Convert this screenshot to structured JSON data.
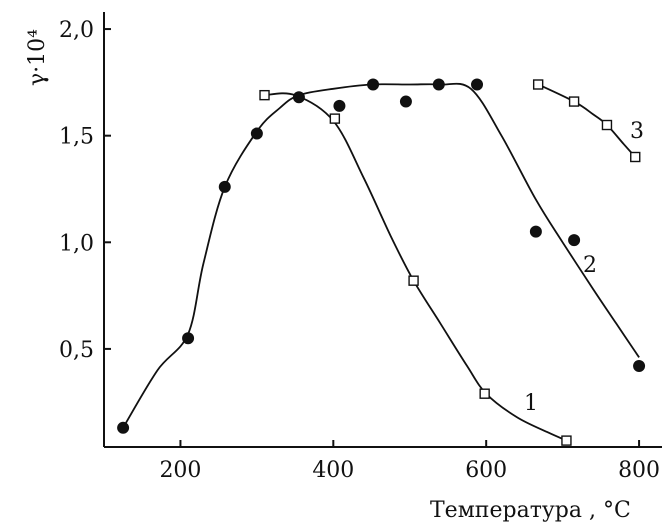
{
  "chart_data": {
    "type": "line",
    "xlabel": "Температура , °С",
    "ylabel": "γ·10⁴",
    "xlim": [
      100,
      830
    ],
    "ylim": [
      0.04,
      2.08
    ],
    "x_ticks": [
      {
        "value": 200,
        "label": "200"
      },
      {
        "value": 400,
        "label": "400"
      },
      {
        "value": 600,
        "label": "600"
      },
      {
        "value": 800,
        "label": "800"
      }
    ],
    "y_ticks": [
      {
        "value": 0.5,
        "label": "0,5"
      },
      {
        "value": 1.0,
        "label": "1,0"
      },
      {
        "value": 1.5,
        "label": "1,5"
      },
      {
        "value": 2.0,
        "label": "2,0"
      }
    ],
    "series": [
      {
        "name": "1",
        "marker": "open-square",
        "line": [
          [
            310,
            1.69
          ],
          [
            350,
            1.69
          ],
          [
            400,
            1.57
          ],
          [
            440,
            1.3
          ],
          [
            475,
            1.03
          ],
          [
            505,
            0.82
          ],
          [
            540,
            0.62
          ],
          [
            575,
            0.42
          ],
          [
            600,
            0.29
          ],
          [
            640,
            0.18
          ],
          [
            680,
            0.11
          ],
          [
            705,
            0.07
          ]
        ],
        "points": [
          [
            310,
            1.69
          ],
          [
            402,
            1.58
          ],
          [
            505,
            0.82
          ],
          [
            598,
            0.29
          ],
          [
            705,
            0.07
          ]
        ]
      },
      {
        "name": "2",
        "marker": "filled-circle",
        "line": [
          [
            125,
            0.13
          ],
          [
            170,
            0.4
          ],
          [
            210,
            0.57
          ],
          [
            230,
            0.9
          ],
          [
            258,
            1.26
          ],
          [
            300,
            1.52
          ],
          [
            330,
            1.63
          ],
          [
            355,
            1.69
          ],
          [
            400,
            1.72
          ],
          [
            450,
            1.74
          ],
          [
            500,
            1.74
          ],
          [
            540,
            1.74
          ],
          [
            580,
            1.72
          ],
          [
            620,
            1.5
          ],
          [
            665,
            1.2
          ],
          [
            700,
            1.0
          ],
          [
            740,
            0.78
          ],
          [
            770,
            0.62
          ],
          [
            800,
            0.46
          ]
        ],
        "points": [
          [
            125,
            0.13
          ],
          [
            210,
            0.55
          ],
          [
            258,
            1.26
          ],
          [
            300,
            1.51
          ],
          [
            355,
            1.68
          ],
          [
            408,
            1.64
          ],
          [
            452,
            1.74
          ],
          [
            495,
            1.66
          ],
          [
            538,
            1.74
          ],
          [
            588,
            1.74
          ],
          [
            665,
            1.05
          ],
          [
            715,
            1.01
          ],
          [
            800,
            0.42
          ]
        ]
      },
      {
        "name": "3",
        "marker": "open-square",
        "line": [
          [
            668,
            1.74
          ],
          [
            715,
            1.66
          ],
          [
            740,
            1.6
          ],
          [
            758,
            1.55
          ],
          [
            780,
            1.46
          ],
          [
            795,
            1.4
          ]
        ],
        "points": [
          [
            668,
            1.74
          ],
          [
            715,
            1.66
          ],
          [
            758,
            1.55
          ],
          [
            795,
            1.4
          ]
        ]
      }
    ]
  }
}
